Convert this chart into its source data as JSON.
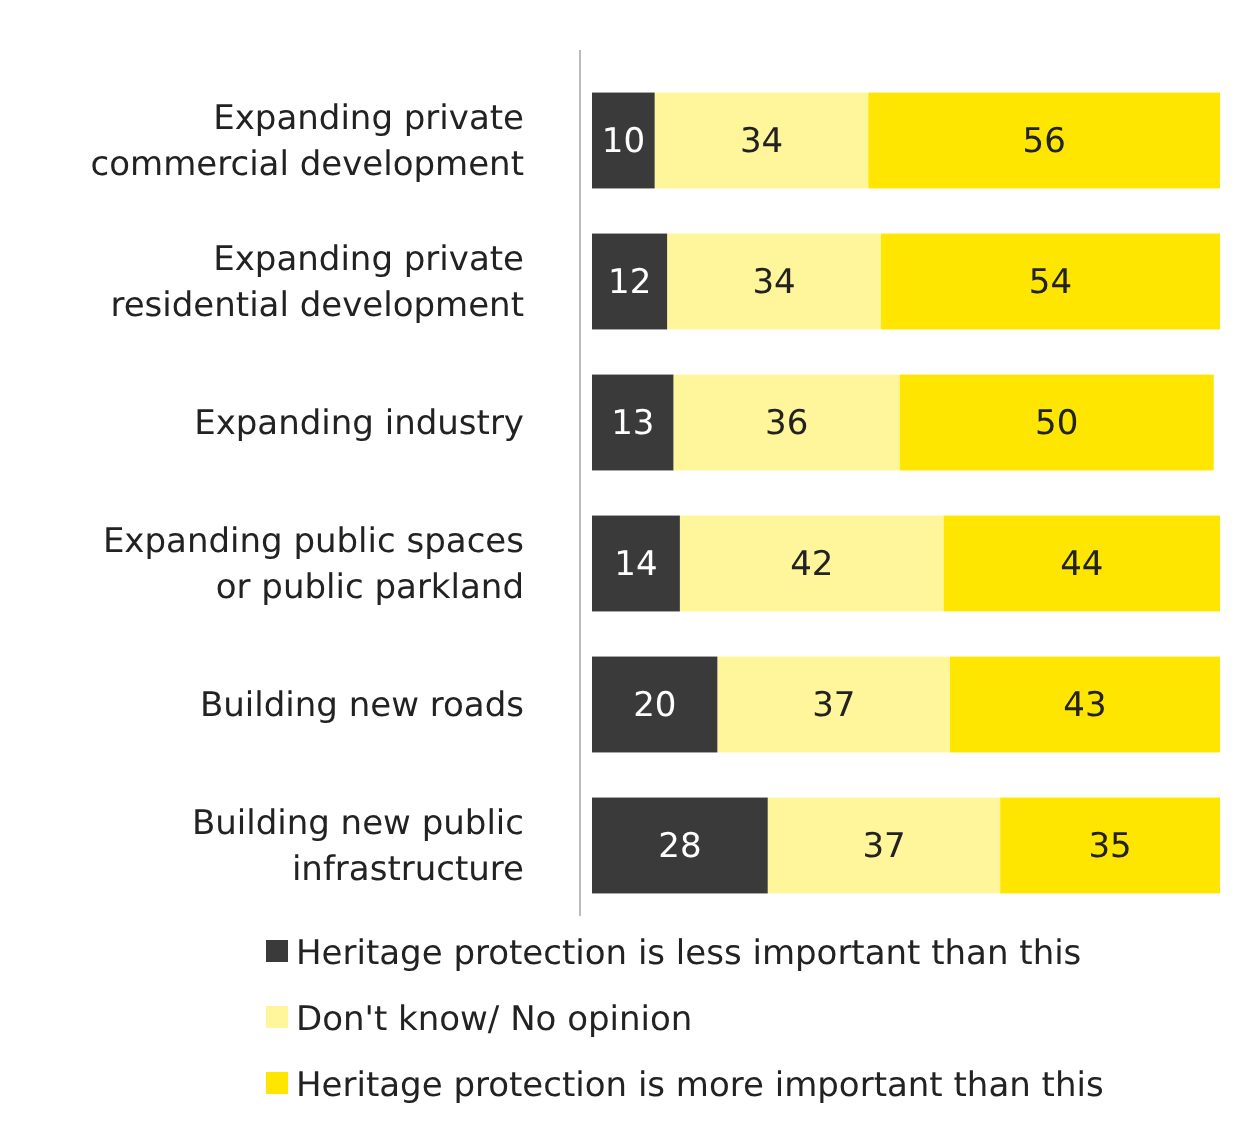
{
  "chart_data": {
    "type": "bar",
    "orientation": "horizontal",
    "stacked": true,
    "data_labels": true,
    "legend": "bottom",
    "tick_labels": "y",
    "xlim": [
      0,
      100
    ],
    "categories": [
      "Expanding private commercial development",
      "Expanding private residential development",
      "Expanding industry",
      "Expanding public spaces or public parkland",
      "Building new roads",
      "Building new public infrastructure"
    ],
    "series": [
      {
        "name": "Heritage protection is less important than this",
        "color": "#3a3a3a",
        "values": [
          10,
          12,
          13,
          14,
          20,
          28
        ]
      },
      {
        "name": "Don't know/ No opinion",
        "color": "#fff59a",
        "values": [
          34,
          34,
          36,
          42,
          37,
          37
        ]
      },
      {
        "name": "Heritage protection is more important than this",
        "color": "#ffe600",
        "values": [
          56,
          54,
          50,
          44,
          43,
          35
        ]
      }
    ]
  }
}
